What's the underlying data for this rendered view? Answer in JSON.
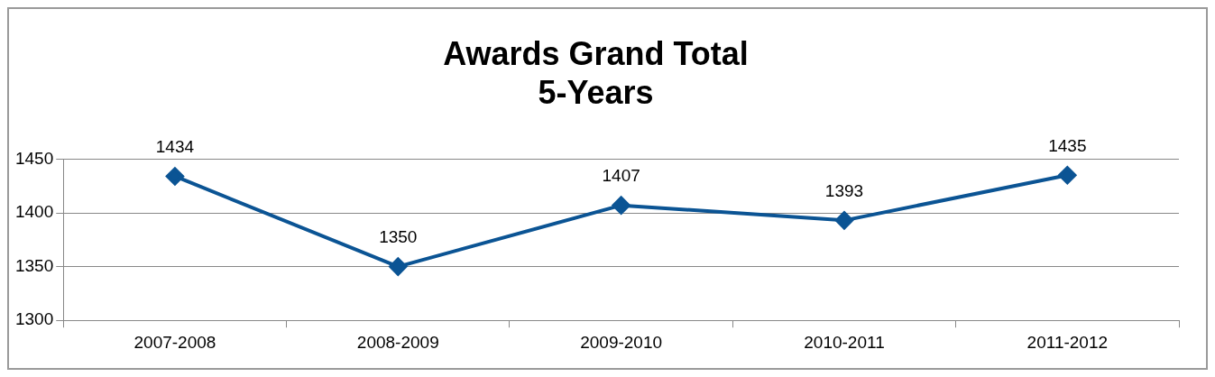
{
  "chart_data": {
    "type": "line",
    "title": "Awards Grand Total",
    "subtitle": "5-Years",
    "categories": [
      "2007-2008",
      "2008-2009",
      "2009-2010",
      "2010-2011",
      "2011-2012"
    ],
    "series": [
      {
        "color": "#0b5494",
        "values": [
          1434,
          1350,
          1407,
          1393,
          1435
        ]
      }
    ],
    "ylim": [
      1300,
      1450
    ],
    "yticks": [
      1300,
      1350,
      1400,
      1450
    ],
    "grid": "y",
    "legend": false,
    "marker": "diamond",
    "line_style": "solid",
    "data_labels": true
  }
}
